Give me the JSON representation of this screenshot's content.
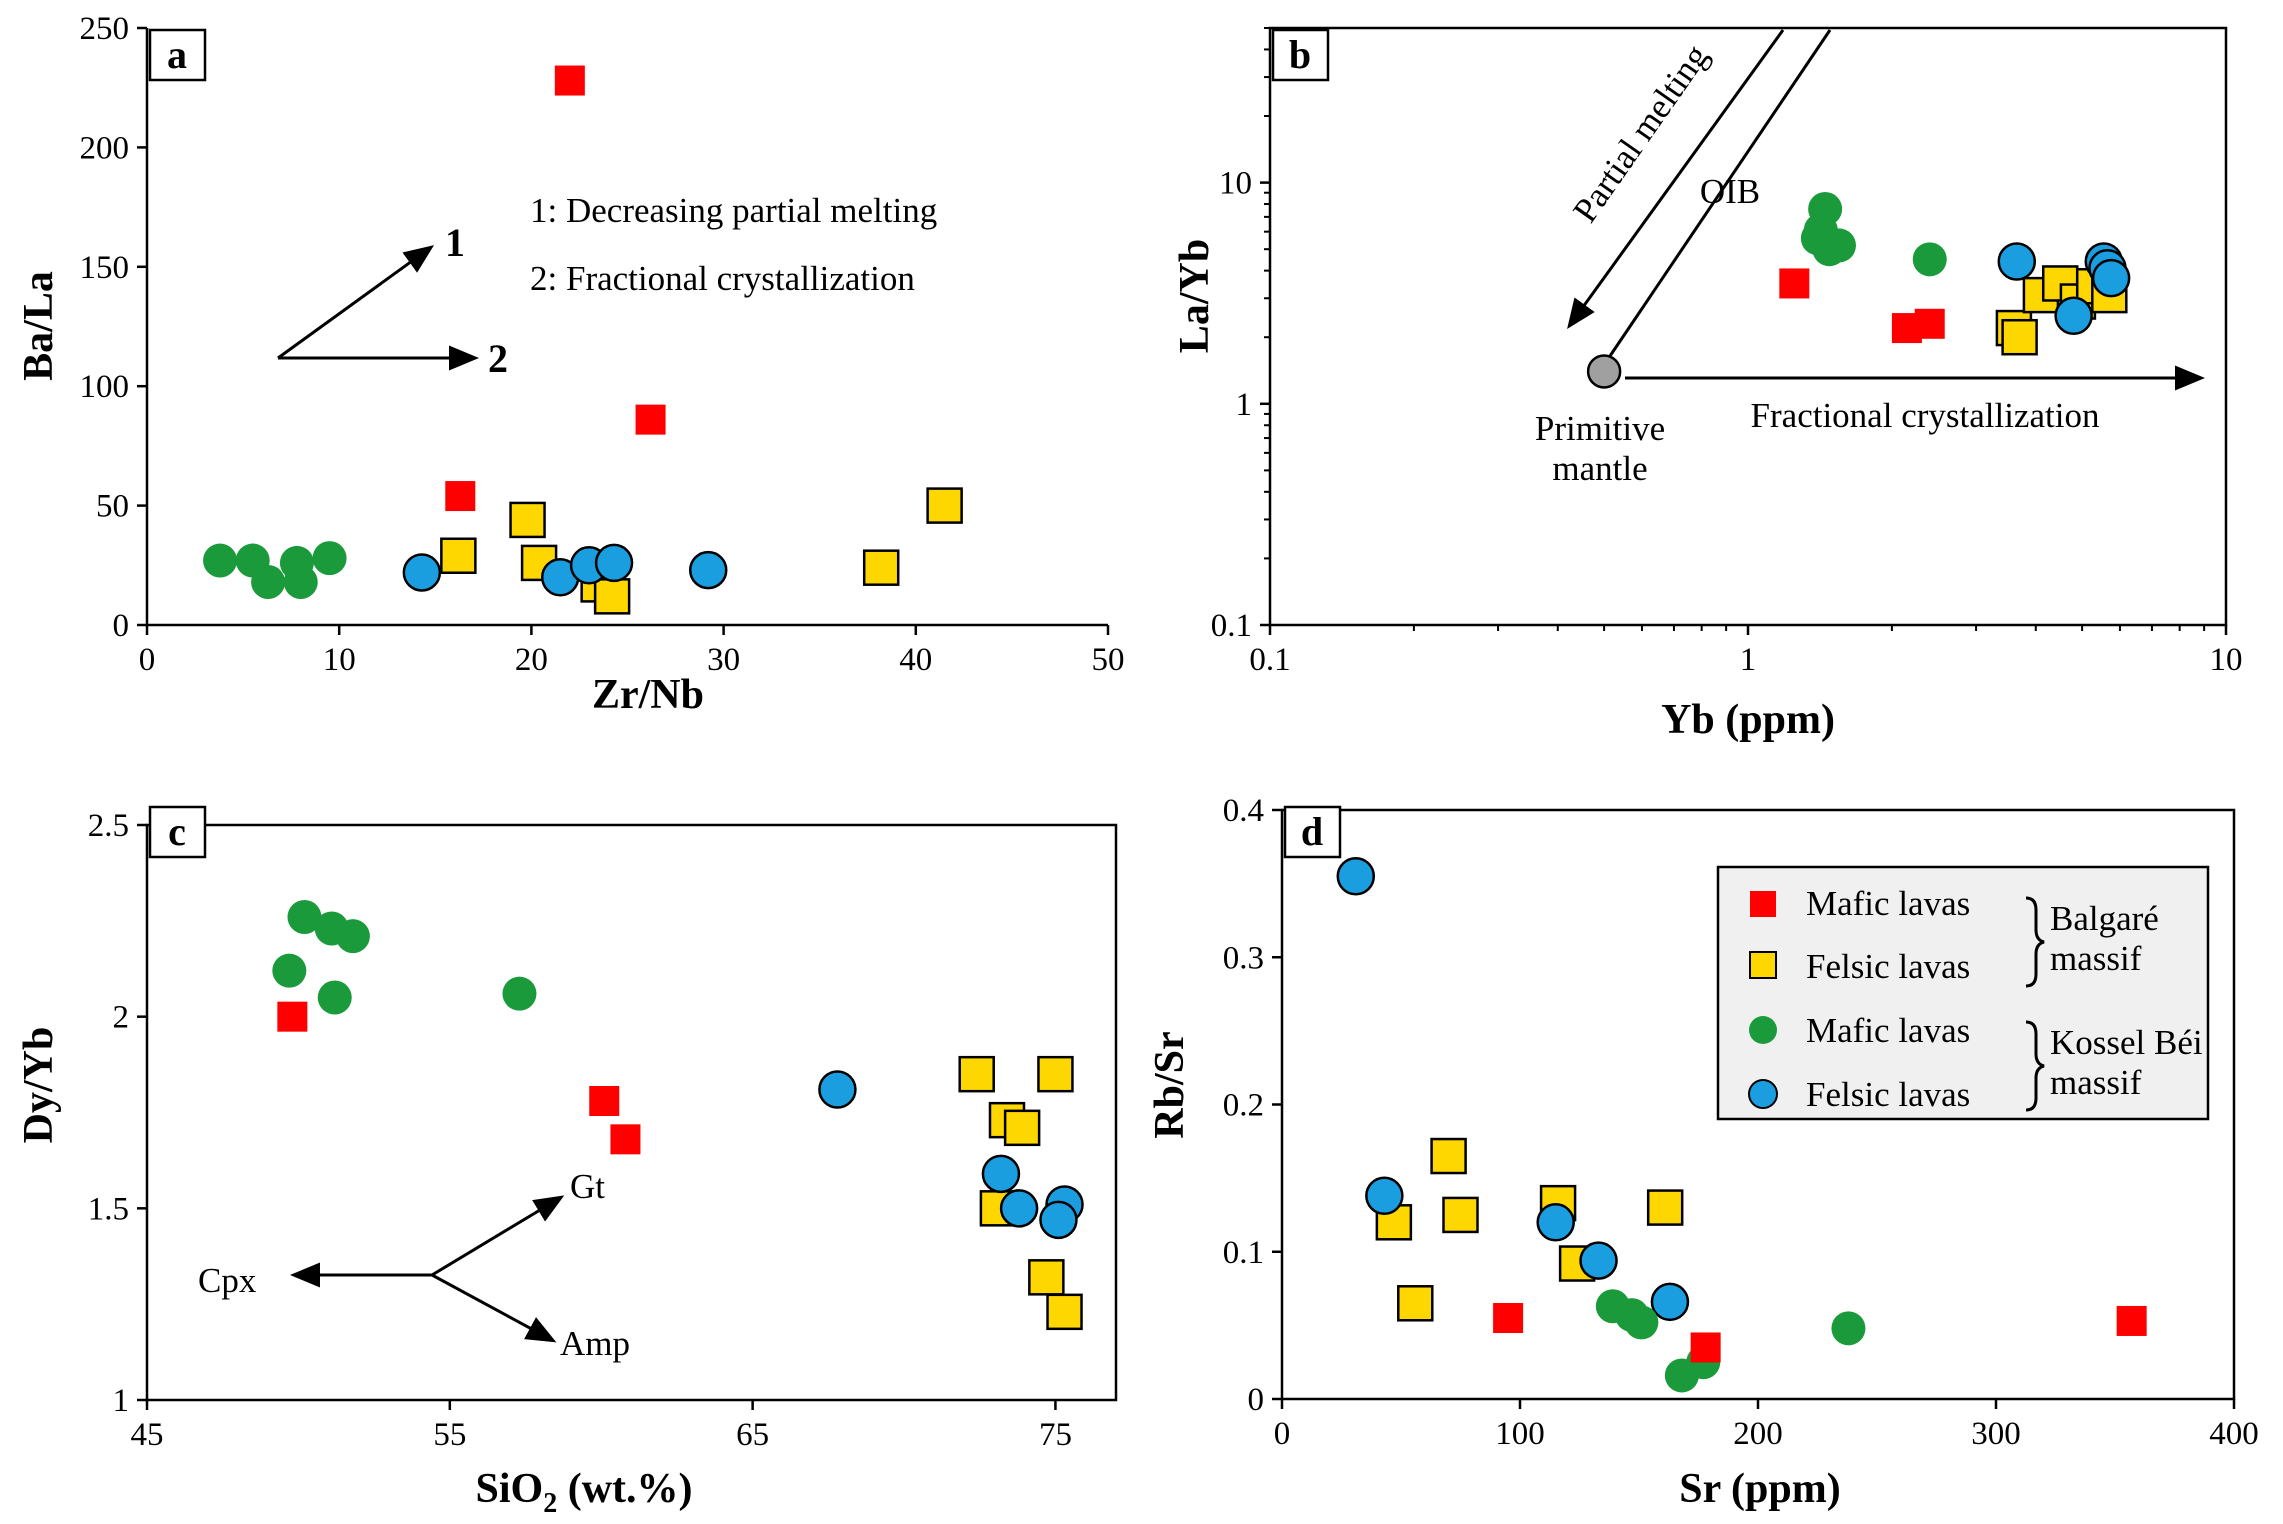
{
  "colors": {
    "mafic_balgare": "#ff0000",
    "felsic_balgare": "#ffd700",
    "mafic_kossel": "#1a9a3a",
    "felsic_kossel": "#1b9ee0",
    "primitive_mantle": "#a0a0a0",
    "legend_bg": "#f0f0f0"
  },
  "legend": {
    "items": [
      {
        "label": "Mafic lavas",
        "series": "mafic_balgare"
      },
      {
        "label": "Felsic lavas",
        "series": "felsic_balgare"
      },
      {
        "label": "Mafic lavas",
        "series": "mafic_kossel"
      },
      {
        "label": "Felsic lavas",
        "series": "felsic_kossel"
      }
    ],
    "groups": [
      {
        "line1": "Balgaré",
        "line2": "massif"
      },
      {
        "line1": "Kossel Béi",
        "line2": "massif"
      }
    ]
  },
  "chart_data": [
    {
      "id": "a",
      "type": "scatter",
      "panel_letter": "a",
      "xlabel": "Zr/Nb",
      "ylabel": "Ba/La",
      "xlim": [
        0,
        50
      ],
      "ylim": [
        0,
        250
      ],
      "xticks": [
        0,
        10,
        20,
        30,
        40,
        50
      ],
      "yticks": [
        0,
        50,
        100,
        150,
        200,
        250
      ],
      "annotations": [
        "1: Decreasing partial melting",
        "2: Fractional crystallization"
      ],
      "vector_labels": [
        "1",
        "2"
      ],
      "series": [
        {
          "name": "mafic_balgare",
          "x": [
            22,
            26.2,
            16.3
          ],
          "y": [
            228,
            86,
            54
          ]
        },
        {
          "name": "felsic_balgare",
          "x": [
            16.2,
            19.8,
            20.4,
            23.5,
            24.2,
            38.2,
            41.5
          ],
          "y": [
            29,
            44,
            26,
            17,
            12,
            24,
            50
          ]
        },
        {
          "name": "mafic_kossel",
          "x": [
            3.8,
            5.5,
            6.3,
            7.8,
            8.0,
            9.5
          ],
          "y": [
            27,
            27,
            18,
            26,
            18,
            28
          ]
        },
        {
          "name": "felsic_kossel",
          "x": [
            14.3,
            21.5,
            23.0,
            24.3,
            29.2
          ],
          "y": [
            22,
            20,
            25,
            26,
            23
          ]
        }
      ]
    },
    {
      "id": "b",
      "type": "scatter",
      "panel_letter": "b",
      "xlabel": "Yb (ppm)",
      "ylabel": "La/Yb",
      "xscale": "log",
      "yscale": "log",
      "xlim": [
        0.1,
        10
      ],
      "ylim": [
        0.1,
        50
      ],
      "xticks": [
        0.1,
        1,
        10
      ],
      "yticks": [
        0.1,
        1,
        10
      ],
      "tick_labels_x": [
        "0.1",
        "1",
        "10"
      ],
      "tick_labels_y": [
        "0.1",
        "1",
        "10"
      ],
      "annotations": {
        "partial_melting": "Partial melting",
        "oib": "OIB",
        "primitive_line1": "Primitive",
        "primitive_line2": "mantle",
        "fractional": "Fractional crystallization"
      },
      "primitive_mantle": {
        "x": 0.5,
        "y": 1.4
      },
      "series": [
        {
          "name": "mafic_balgare",
          "x": [
            1.25,
            2.15,
            2.4
          ],
          "y": [
            3.5,
            2.2,
            2.3
          ]
        },
        {
          "name": "felsic_balgare",
          "x": [
            3.6,
            3.7,
            4.1,
            4.5,
            4.9,
            5.3,
            5.7
          ],
          "y": [
            2.2,
            2.0,
            3.1,
            3.5,
            2.9,
            3.4,
            3.1
          ]
        },
        {
          "name": "mafic_kossel",
          "x": [
            1.45,
            1.4,
            1.42,
            1.55,
            1.48,
            2.4
          ],
          "y": [
            7.6,
            5.6,
            6.1,
            5.2,
            5.0,
            4.5
          ]
        },
        {
          "name": "felsic_kossel",
          "x": [
            3.65,
            4.8,
            5.55,
            5.65,
            5.75
          ],
          "y": [
            4.4,
            2.5,
            4.4,
            4.1,
            3.7
          ]
        }
      ]
    },
    {
      "id": "c",
      "type": "scatter",
      "panel_letter": "c",
      "xlabel_main": "SiO",
      "xlabel_sub": "2",
      "xlabel_rest": " (wt.%)",
      "ylabel": "Dy/Yb",
      "xlim": [
        45,
        77
      ],
      "ylim": [
        1,
        2.5
      ],
      "xticks": [
        45,
        55,
        65,
        75
      ],
      "yticks": [
        1,
        1.5,
        2,
        2.5
      ],
      "tick_labels_y": [
        "1",
        "1.5",
        "2",
        "2.5"
      ],
      "vector_labels": {
        "gt": "Gt",
        "cpx": "Cpx",
        "amp": "Amp"
      },
      "series": [
        {
          "name": "mafic_balgare",
          "x": [
            49.8,
            60.1,
            60.8
          ],
          "y": [
            2.0,
            1.78,
            1.68
          ]
        },
        {
          "name": "felsic_balgare",
          "x": [
            72.4,
            73.1,
            73.4,
            73.9,
            75.0,
            74.7,
            75.3
          ],
          "y": [
            1.85,
            1.5,
            1.73,
            1.71,
            1.85,
            1.32,
            1.23
          ]
        },
        {
          "name": "mafic_kossel",
          "x": [
            50.2,
            49.7,
            51.1,
            51.8,
            51.2,
            57.3
          ],
          "y": [
            2.26,
            2.12,
            2.23,
            2.21,
            2.05,
            2.06
          ]
        },
        {
          "name": "felsic_kossel",
          "x": [
            67.8,
            73.2,
            73.8,
            75.3,
            75.1
          ],
          "y": [
            1.81,
            1.59,
            1.5,
            1.51,
            1.47
          ]
        }
      ]
    },
    {
      "id": "d",
      "type": "scatter",
      "panel_letter": "d",
      "xlabel": "Sr (ppm)",
      "ylabel": "Rb/Sr",
      "xlim": [
        0,
        400
      ],
      "ylim": [
        0,
        0.4
      ],
      "xticks": [
        0,
        100,
        200,
        300,
        400
      ],
      "yticks": [
        0,
        0.1,
        0.2,
        0.3,
        0.4
      ],
      "tick_labels_y": [
        "0",
        "0.1",
        "0.2",
        "0.3",
        "0.4"
      ],
      "series": [
        {
          "name": "mafic_balgare",
          "x": [
            95,
            178,
            357
          ],
          "y": [
            0.055,
            0.035,
            0.053
          ]
        },
        {
          "name": "felsic_balgare",
          "x": [
            47,
            56,
            70,
            75,
            116,
            124,
            161
          ],
          "y": [
            0.12,
            0.065,
            0.165,
            0.125,
            0.133,
            0.092,
            0.13
          ]
        },
        {
          "name": "mafic_kossel",
          "x": [
            139,
            147,
            151,
            168,
            177,
            238
          ],
          "y": [
            0.063,
            0.057,
            0.052,
            0.016,
            0.025,
            0.048
          ]
        },
        {
          "name": "felsic_kossel",
          "x": [
            31,
            43,
            115,
            133,
            163
          ],
          "y": [
            0.355,
            0.138,
            0.12,
            0.094,
            0.066
          ]
        }
      ]
    }
  ]
}
